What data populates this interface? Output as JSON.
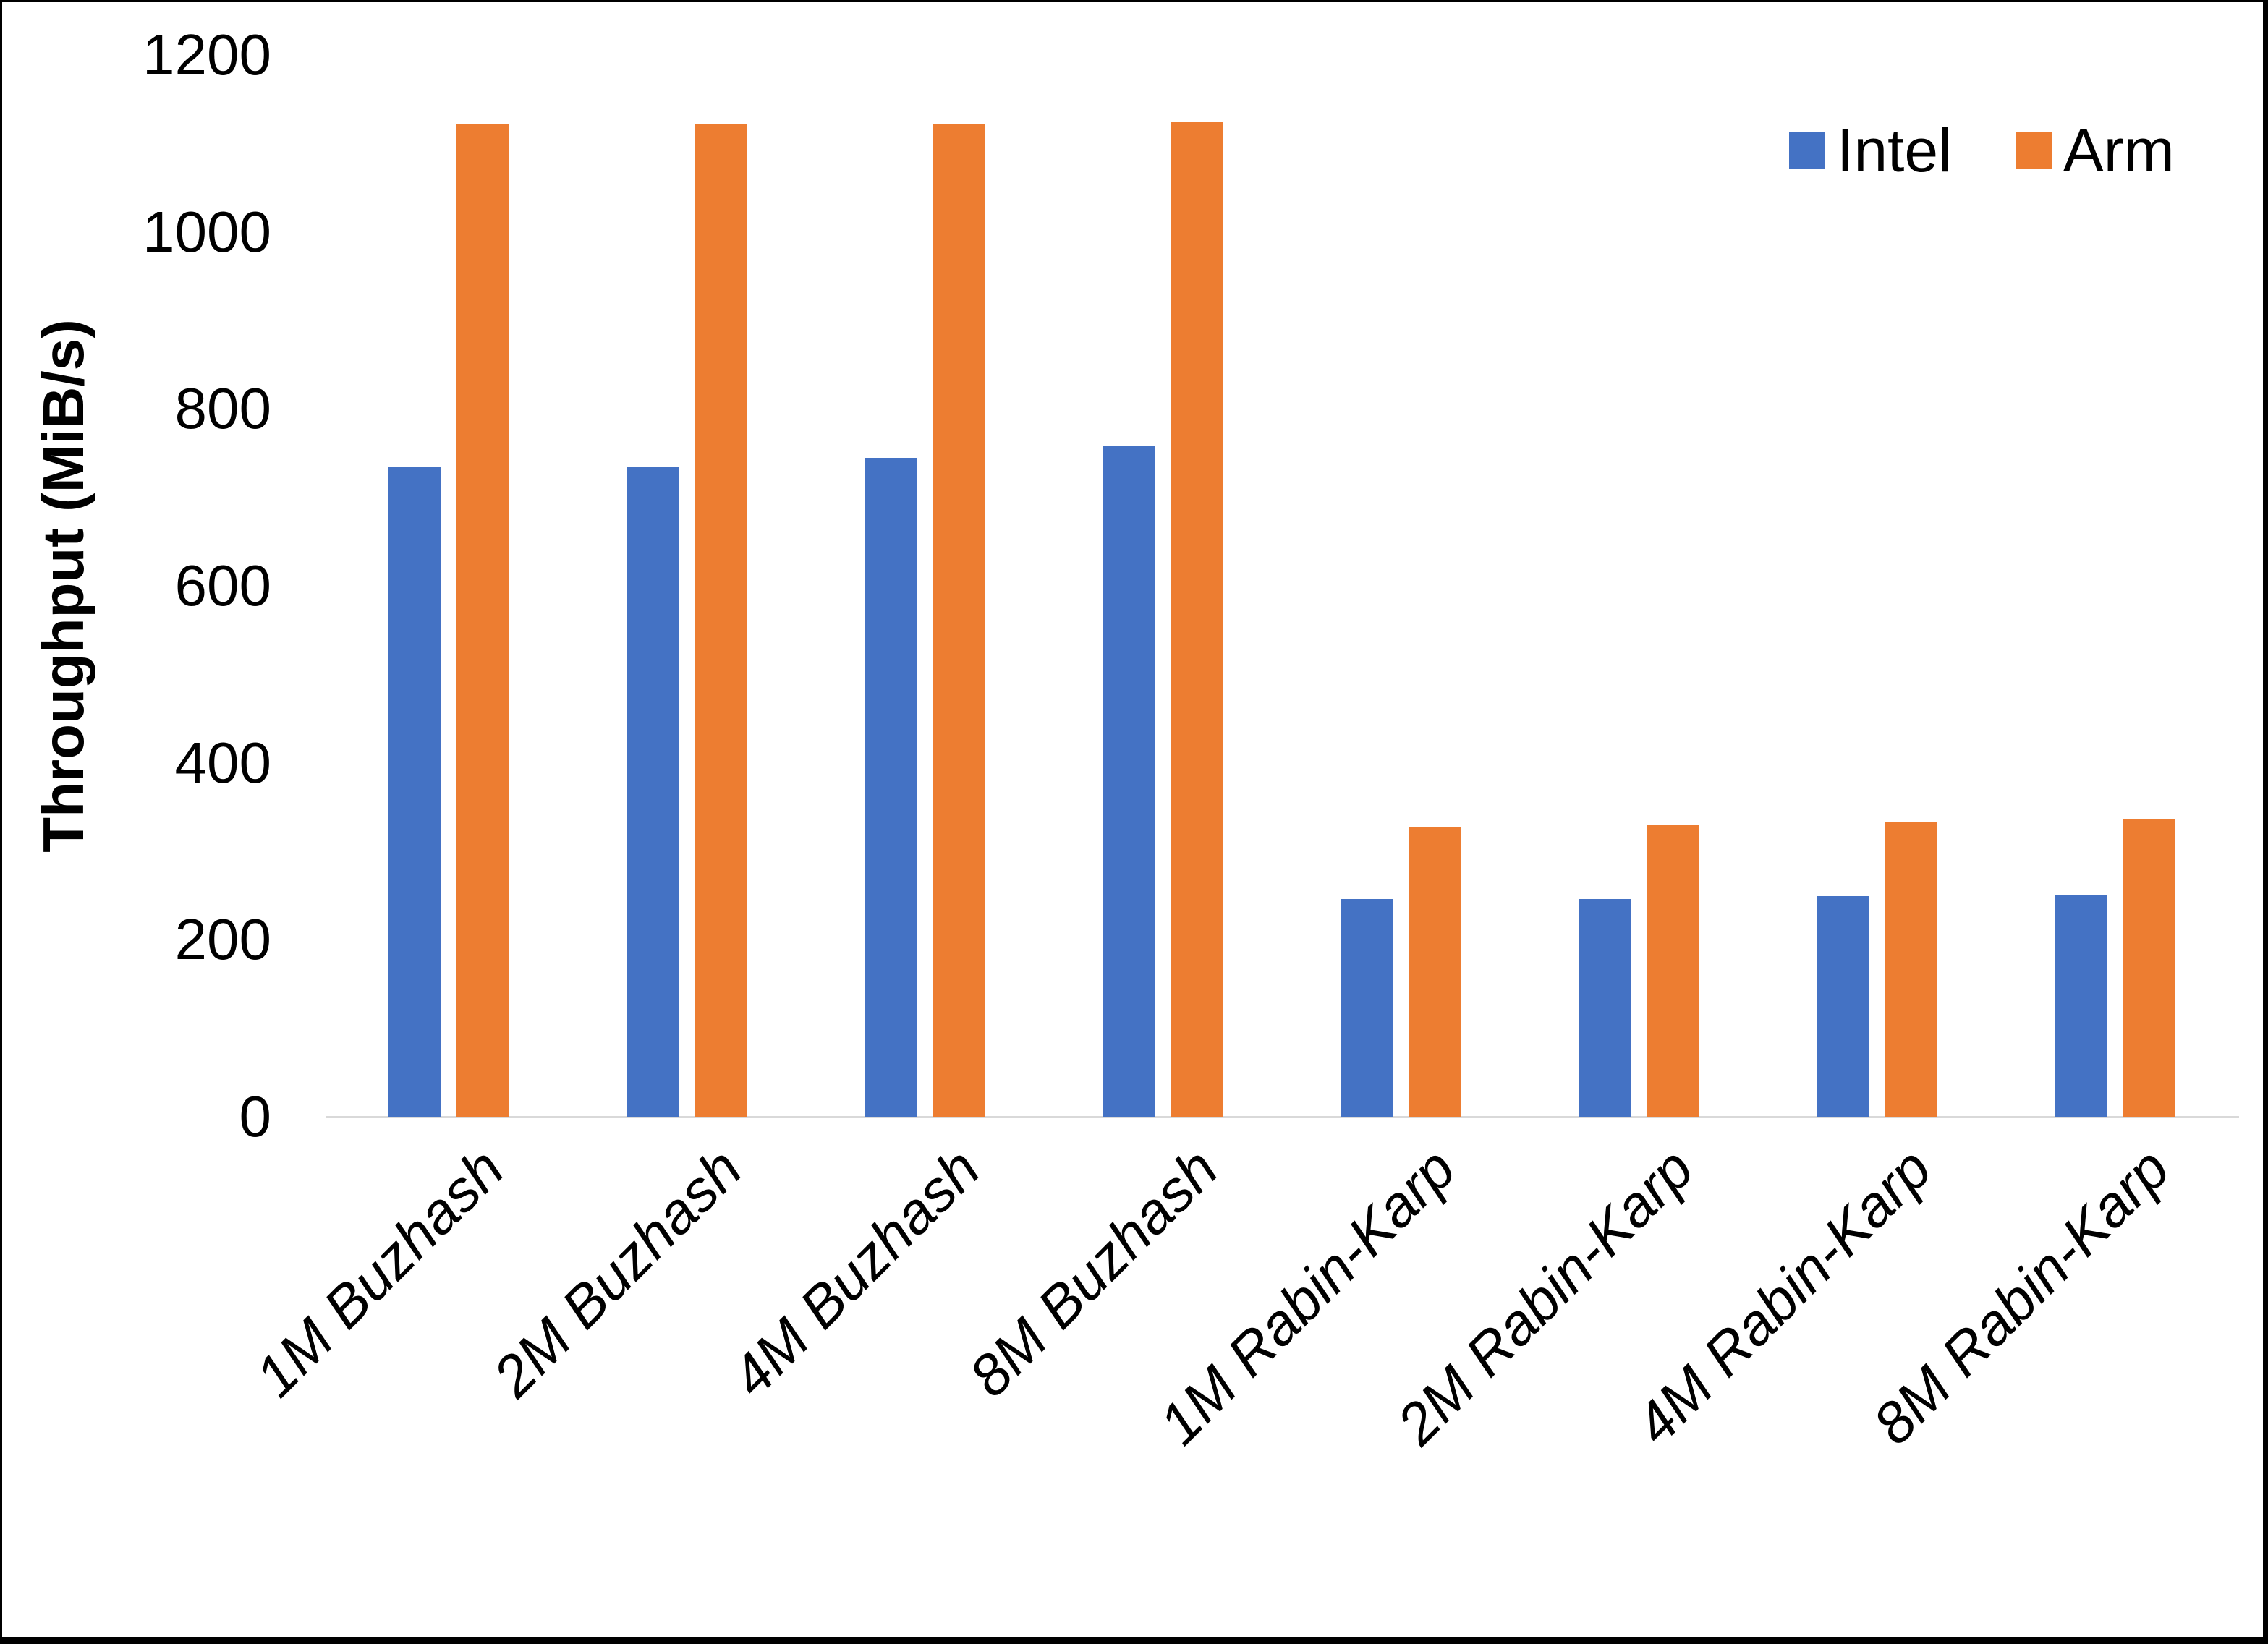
{
  "chart_data": {
    "type": "bar",
    "title": "",
    "xlabel": "",
    "ylabel": "Throughput (MiB/s)",
    "categories": [
      "1M Buzhash",
      "2M Buzhash",
      "4M Buzhash",
      "8M Buzhash",
      "1M Rabin-Karp",
      "2M Rabin-Karp",
      "4M Rabin-Karp",
      "8M Rabin-Karp"
    ],
    "series": [
      {
        "name": "Intel",
        "color": "#4472C4",
        "values": [
          735,
          735,
          745,
          758,
          246,
          246,
          249,
          251
        ]
      },
      {
        "name": "Arm",
        "color": "#ED7D31",
        "values": [
          1122,
          1122,
          1122,
          1124,
          327,
          330,
          333,
          336
        ]
      }
    ],
    "ylim": [
      0,
      1200
    ],
    "yticks": [
      0,
      200,
      400,
      600,
      800,
      1000,
      1200
    ],
    "grid": false,
    "legend_position": "top-right",
    "x_tick_rotation_deg": 45
  },
  "legend": {
    "items": [
      {
        "label": "Intel",
        "color": "#4472C4"
      },
      {
        "label": "Arm",
        "color": "#ED7D31"
      }
    ]
  },
  "colors": {
    "background": "#FFFFFF",
    "frame_border": "#000000",
    "axis_line": "#D9D9D9",
    "text": "#000000"
  }
}
